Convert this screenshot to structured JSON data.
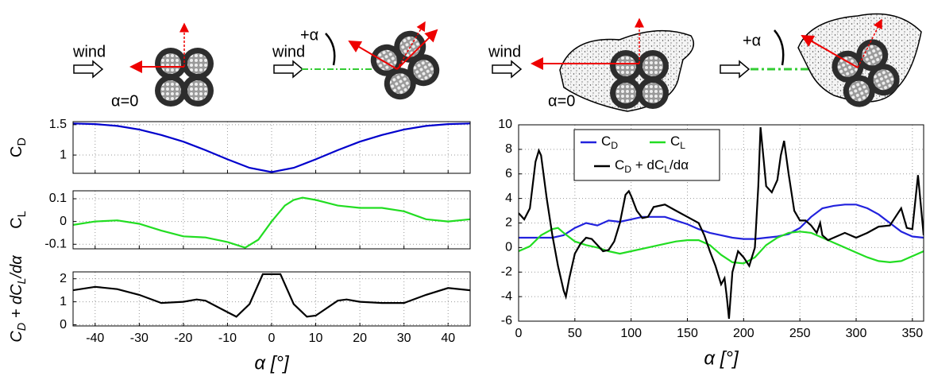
{
  "illustrations": [
    {
      "wind": "wind",
      "angle": "α=0"
    },
    {
      "wind": "wind",
      "angle": "+α"
    },
    {
      "wind": "wind",
      "angle": "α=0"
    },
    {
      "angle": "+α"
    }
  ],
  "chart_data": [
    {
      "type": "line",
      "ylabel": [
        "C",
        "D"
      ],
      "xlim": [
        -45,
        45
      ],
      "xticks": [
        -40,
        -30,
        -20,
        -10,
        0,
        10,
        20,
        30,
        40
      ],
      "ylim": [
        0.7,
        1.55
      ],
      "yticks": [
        1,
        1.5
      ],
      "grid": true,
      "series": [
        {
          "color": "#0000cc",
          "x": [
            -45,
            -40,
            -35,
            -30,
            -25,
            -20,
            -15,
            -10,
            -5,
            0,
            5,
            10,
            15,
            20,
            25,
            30,
            35,
            40,
            45
          ],
          "values": [
            1.52,
            1.51,
            1.48,
            1.42,
            1.33,
            1.22,
            1.08,
            0.93,
            0.79,
            0.72,
            0.79,
            0.93,
            1.08,
            1.22,
            1.33,
            1.42,
            1.48,
            1.51,
            1.52
          ]
        }
      ]
    },
    {
      "type": "line",
      "ylabel": [
        "C",
        "L"
      ],
      "xlim": [
        -45,
        45
      ],
      "xticks": [
        -40,
        -30,
        -20,
        -10,
        0,
        10,
        20,
        30,
        40
      ],
      "ylim": [
        -0.12,
        0.135
      ],
      "yticks": [
        -0.1,
        0,
        0.1
      ],
      "grid": true,
      "series": [
        {
          "color": "#22dd22",
          "x": [
            -45,
            -40,
            -35,
            -30,
            -25,
            -20,
            -15,
            -10,
            -6,
            -3,
            0,
            3,
            5,
            7,
            10,
            15,
            20,
            25,
            30,
            35,
            40,
            45
          ],
          "values": [
            -0.015,
            0.0,
            0.005,
            -0.01,
            -0.04,
            -0.065,
            -0.07,
            -0.09,
            -0.115,
            -0.08,
            0.0,
            0.07,
            0.095,
            0.105,
            0.095,
            0.07,
            0.06,
            0.06,
            0.045,
            0.01,
            0.0,
            0.01
          ]
        }
      ]
    },
    {
      "type": "line",
      "ylabel": [
        "C",
        "D",
        " + dC",
        "L",
        "/dα"
      ],
      "xlabel": "α [°]",
      "xlim": [
        -45,
        45
      ],
      "xticks": [
        -40,
        -30,
        -20,
        -10,
        0,
        10,
        20,
        30,
        40
      ],
      "ylim": [
        -0.05,
        2.3
      ],
      "yticks": [
        0,
        1,
        2
      ],
      "grid": true,
      "series": [
        {
          "color": "#000000",
          "x": [
            -45,
            -40,
            -35,
            -30,
            -25,
            -20,
            -17,
            -15,
            -10,
            -8,
            -5,
            -2,
            0,
            2,
            5,
            8,
            10,
            15,
            17,
            20,
            25,
            30,
            35,
            40,
            45
          ],
          "values": [
            1.5,
            1.65,
            1.55,
            1.3,
            0.95,
            1.0,
            1.1,
            1.05,
            0.55,
            0.35,
            0.9,
            2.2,
            2.2,
            2.2,
            0.9,
            0.35,
            0.4,
            1.05,
            1.1,
            1.0,
            0.95,
            0.95,
            1.3,
            1.6,
            1.5
          ]
        }
      ]
    },
    {
      "type": "line",
      "xlabel": "α [°]",
      "xlim": [
        0,
        360
      ],
      "xticks": [
        0,
        50,
        100,
        150,
        200,
        250,
        300,
        350
      ],
      "ylim": [
        -6,
        10
      ],
      "yticks": [
        -6,
        -4,
        -2,
        0,
        2,
        4,
        6,
        8,
        10
      ],
      "grid": true,
      "legend": "upper left",
      "series": [
        {
          "name": [
            "C",
            "D"
          ],
          "color": "#2222dd",
          "x": [
            0,
            10,
            20,
            30,
            40,
            50,
            60,
            70,
            80,
            90,
            100,
            110,
            120,
            130,
            140,
            150,
            160,
            170,
            180,
            190,
            200,
            210,
            220,
            230,
            240,
            250,
            260,
            270,
            280,
            290,
            300,
            310,
            320,
            330,
            340,
            350,
            360
          ],
          "values": [
            0.8,
            0.8,
            0.8,
            0.8,
            1.0,
            1.6,
            2.0,
            1.8,
            2.2,
            2.1,
            2.3,
            2.5,
            2.5,
            2.5,
            2.2,
            1.9,
            1.5,
            1.2,
            1.0,
            0.8,
            0.7,
            0.7,
            0.8,
            0.9,
            1.1,
            1.6,
            2.5,
            3.2,
            3.4,
            3.5,
            3.5,
            3.2,
            2.7,
            2.0,
            1.3,
            0.9,
            0.8
          ]
        },
        {
          "name": [
            "C",
            "L"
          ],
          "color": "#22dd22",
          "x": [
            0,
            10,
            20,
            30,
            35,
            40,
            50,
            60,
            70,
            80,
            90,
            100,
            110,
            120,
            130,
            140,
            150,
            160,
            170,
            180,
            190,
            200,
            210,
            220,
            230,
            240,
            250,
            260,
            270,
            280,
            290,
            300,
            310,
            320,
            330,
            340,
            350,
            360
          ],
          "values": [
            -0.3,
            0.1,
            1.0,
            1.5,
            1.6,
            1.2,
            0.5,
            0.2,
            0.0,
            -0.3,
            -0.5,
            -0.3,
            -0.1,
            0.1,
            0.3,
            0.5,
            0.6,
            0.6,
            0.2,
            -0.6,
            -1.2,
            -1.3,
            -0.8,
            0.2,
            0.8,
            1.2,
            1.3,
            1.2,
            0.8,
            0.4,
            0.0,
            -0.4,
            -0.8,
            -1.1,
            -1.2,
            -1.1,
            -0.7,
            -0.3
          ]
        },
        {
          "name": [
            "C",
            "D",
            " + dC",
            "L",
            "/dα"
          ],
          "color": "#000000",
          "x": [
            0,
            5,
            10,
            15,
            18,
            20,
            25,
            30,
            35,
            40,
            42,
            45,
            50,
            55,
            60,
            65,
            70,
            75,
            80,
            85,
            90,
            95,
            98,
            100,
            105,
            110,
            115,
            120,
            130,
            140,
            150,
            160,
            165,
            170,
            175,
            180,
            183,
            185,
            187,
            190,
            195,
            200,
            205,
            210,
            213,
            215,
            218,
            220,
            225,
            230,
            233,
            236,
            240,
            245,
            250,
            255,
            260,
            265,
            268,
            270,
            275,
            280,
            290,
            300,
            310,
            320,
            330,
            335,
            340,
            345,
            350,
            355,
            360
          ],
          "values": [
            2.8,
            2.3,
            3.2,
            7.0,
            7.9,
            7.5,
            4.0,
            1.0,
            -1.5,
            -3.5,
            -4.0,
            -2.5,
            -0.5,
            0.3,
            0.8,
            0.7,
            0.2,
            -0.3,
            -0.2,
            0.5,
            2.0,
            4.3,
            4.6,
            4.2,
            3.0,
            2.4,
            2.5,
            3.3,
            3.5,
            3.0,
            2.5,
            2.0,
            1.0,
            -0.3,
            -1.5,
            -3.0,
            -2.5,
            -4.0,
            -5.8,
            -2.0,
            -0.3,
            -0.8,
            -1.5,
            0.0,
            5.0,
            9.8,
            7.0,
            5.0,
            4.5,
            5.5,
            7.5,
            8.7,
            6.0,
            3.0,
            2.2,
            2.2,
            1.8,
            1.2,
            2.0,
            1.0,
            0.6,
            0.8,
            1.2,
            0.8,
            1.2,
            1.7,
            1.8,
            2.5,
            3.2,
            1.6,
            1.5,
            5.9,
            1.0
          ]
        }
      ]
    }
  ]
}
